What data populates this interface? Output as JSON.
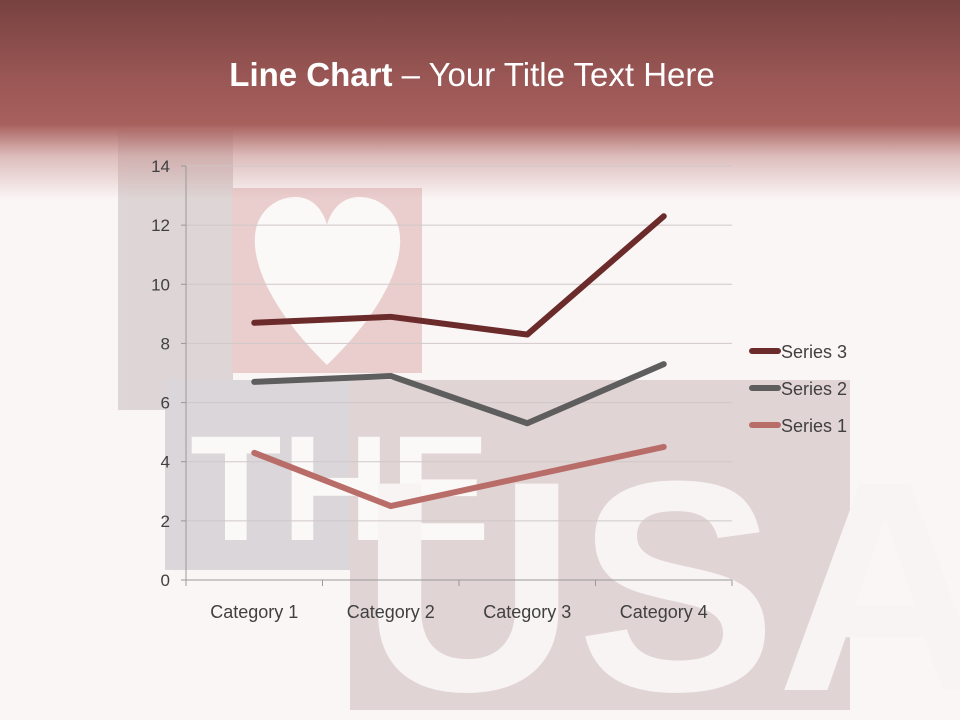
{
  "slide": {
    "title_bold": "Line Chart",
    "title_rest": " – Your Title Text Here",
    "background_image": "letterpress I heart THE USA!"
  },
  "chart_data": {
    "type": "line",
    "stacked": true,
    "categories": [
      "Category 1",
      "Category 2",
      "Category 3",
      "Category 4"
    ],
    "series": [
      {
        "name": "Series 1",
        "values": [
          4.3,
          2.5,
          3.5,
          4.5
        ],
        "color": "#b96d69"
      },
      {
        "name": "Series 2",
        "values": [
          2.4,
          4.4,
          1.8,
          2.8
        ],
        "color": "#5e5e5e"
      },
      {
        "name": "Series 3",
        "values": [
          2,
          2,
          3,
          5
        ],
        "color": "#6c2b2b"
      }
    ],
    "ylim": [
      0,
      14
    ],
    "yticks": [
      "0",
      "2",
      "4",
      "6",
      "8",
      "10",
      "12",
      "14"
    ],
    "grid": true,
    "legend": "right",
    "xlabel": "",
    "ylabel": ""
  }
}
